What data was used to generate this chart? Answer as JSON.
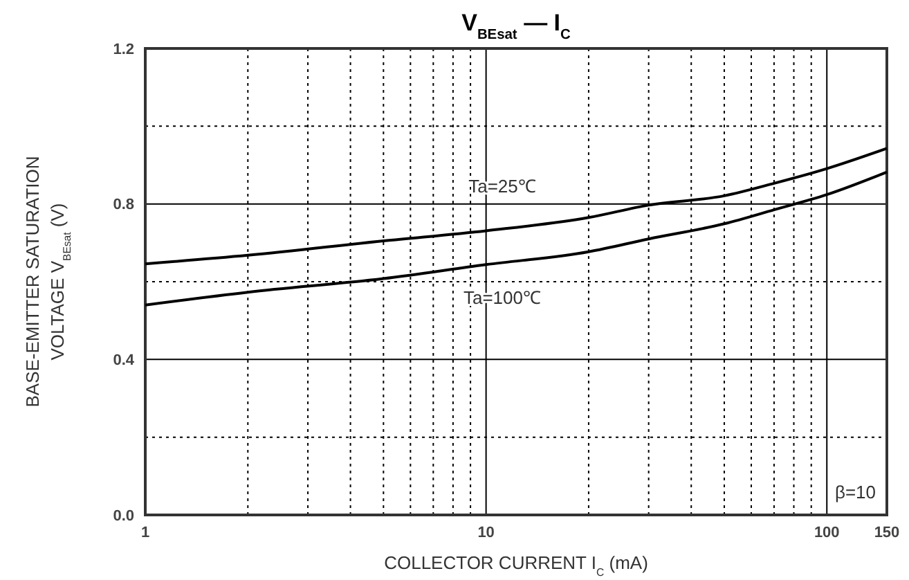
{
  "chart_data": {
    "type": "line",
    "title": "V$_{BEsat}$ — I$_{C}$",
    "xlabel": "COLLECTOR CURRENT  I$_{C}$  (mA)",
    "ylabel": "BASE-EMITTER SATURATION\nVOLTAGE  V$_{BEsat}$  (V)",
    "log": "x",
    "grid": true,
    "marker": "none",
    "line_style": "solid",
    "xlim": [
      1,
      150
    ],
    "xticks": [
      1,
      {
        "value": 2,
        "label": null
      },
      {
        "value": 3,
        "label": null
      },
      {
        "value": 4,
        "label": null
      },
      {
        "value": 5,
        "label": null
      },
      {
        "value": 6,
        "label": null
      },
      {
        "value": 7,
        "label": null
      },
      {
        "value": 8,
        "label": null
      },
      {
        "value": 9,
        "label": null
      },
      10,
      {
        "value": 20,
        "label": null
      },
      {
        "value": 30,
        "label": null
      },
      {
        "value": 40,
        "label": null
      },
      {
        "value": 50,
        "label": null
      },
      {
        "value": 60,
        "label": null
      },
      {
        "value": 70,
        "label": null
      },
      {
        "value": 80,
        "label": null
      },
      {
        "value": 90,
        "label": null
      },
      100,
      150
    ],
    "ylim": [
      0,
      1.2
    ],
    "yticks": [
      {
        "value": 0,
        "label": "0.0"
      },
      {
        "value": 0.2,
        "label": null
      },
      {
        "value": 0.4,
        "label": "0.4"
      },
      {
        "value": 0.6,
        "label": null
      },
      {
        "value": 0.8,
        "label": "0.8"
      },
      {
        "value": 1.0,
        "label": null
      },
      {
        "value": 1.2,
        "label": "1.2"
      }
    ],
    "x": [
      1,
      2,
      5,
      10,
      20,
      30,
      50,
      70,
      100,
      150
    ],
    "series": [
      {
        "name": "Ta=25℃",
        "color": "#000000",
        "values": [
          0.646,
          0.668,
          0.705,
          0.731,
          0.765,
          0.797,
          0.821,
          0.853,
          0.891,
          0.943
        ]
      },
      {
        "name": "Ta=100℃",
        "color": "#000000",
        "values": [
          0.54,
          0.573,
          0.608,
          0.644,
          0.677,
          0.71,
          0.749,
          0.785,
          0.824,
          0.882
        ]
      }
    ],
    "annotations": [
      "β=10"
    ]
  }
}
